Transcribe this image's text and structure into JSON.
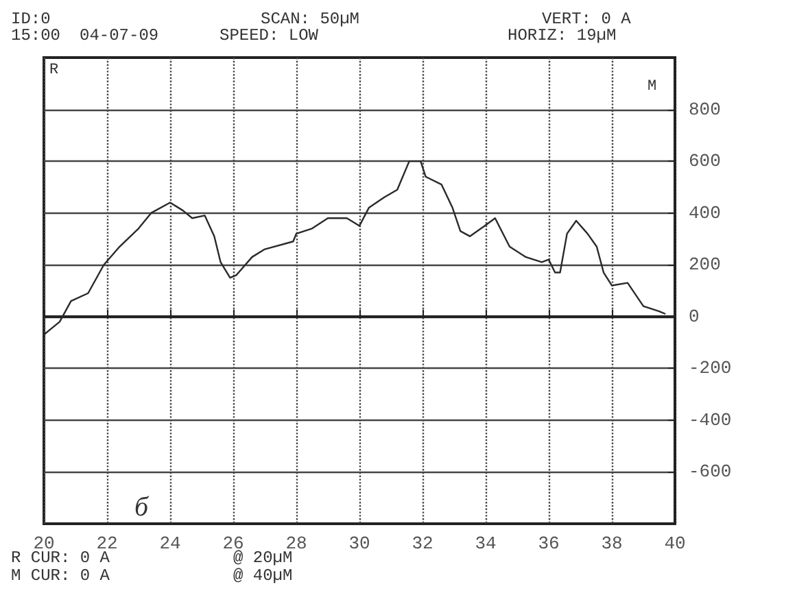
{
  "chart_data": {
    "type": "line",
    "x": [
      20,
      20.2,
      20.5,
      20.86,
      21.4,
      21.9,
      22.4,
      23.0,
      23.4,
      24.0,
      24.4,
      24.7,
      25.1,
      25.4,
      25.6,
      25.9,
      26.1,
      26.6,
      27.0,
      27.9,
      28.0,
      28.5,
      29.0,
      29.6,
      30.0,
      30.3,
      30.78,
      31.2,
      31.58,
      31.94,
      32.1,
      32.6,
      32.95,
      33.2,
      33.5,
      33.97,
      34.3,
      34.76,
      35.27,
      35.78,
      36.0,
      36.2,
      36.36,
      36.58,
      36.87,
      37.23,
      37.52,
      37.74,
      38.0,
      38.5,
      39.0,
      39.5,
      39.7
    ],
    "values": [
      -70,
      -50,
      -20,
      60,
      90,
      200,
      270,
      340,
      400,
      440,
      410,
      380,
      390,
      310,
      210,
      150,
      160,
      230,
      260,
      290,
      320,
      340,
      380,
      380,
      350,
      420,
      460,
      490,
      600,
      600,
      540,
      510,
      420,
      330,
      310,
      350,
      380,
      270,
      230,
      210,
      220,
      170,
      170,
      320,
      370,
      320,
      270,
      170,
      120,
      130,
      40,
      20,
      10
    ],
    "color": "#2a2a2a",
    "xlim": [
      20,
      40
    ],
    "xticks": [
      20,
      22,
      24,
      26,
      28,
      30,
      32,
      34,
      36,
      38,
      40
    ],
    "ylim": [
      -800,
      1000
    ],
    "yticks": [
      -600,
      -400,
      -200,
      0,
      200,
      400,
      600,
      800
    ],
    "grid": true,
    "marker": "none",
    "line_style": "solid",
    "annotations": [
      "ID:0",
      "15:00",
      "04-07-09",
      "SCAN: 50µM",
      "SPEED: LOW",
      "VERT: 0 A",
      "HORIZ: 19µM",
      "R CUR: 0 A",
      "M CUR: 0 A",
      "@ 20µM",
      "@ 40µM",
      "R",
      "M",
      "б"
    ]
  }
}
